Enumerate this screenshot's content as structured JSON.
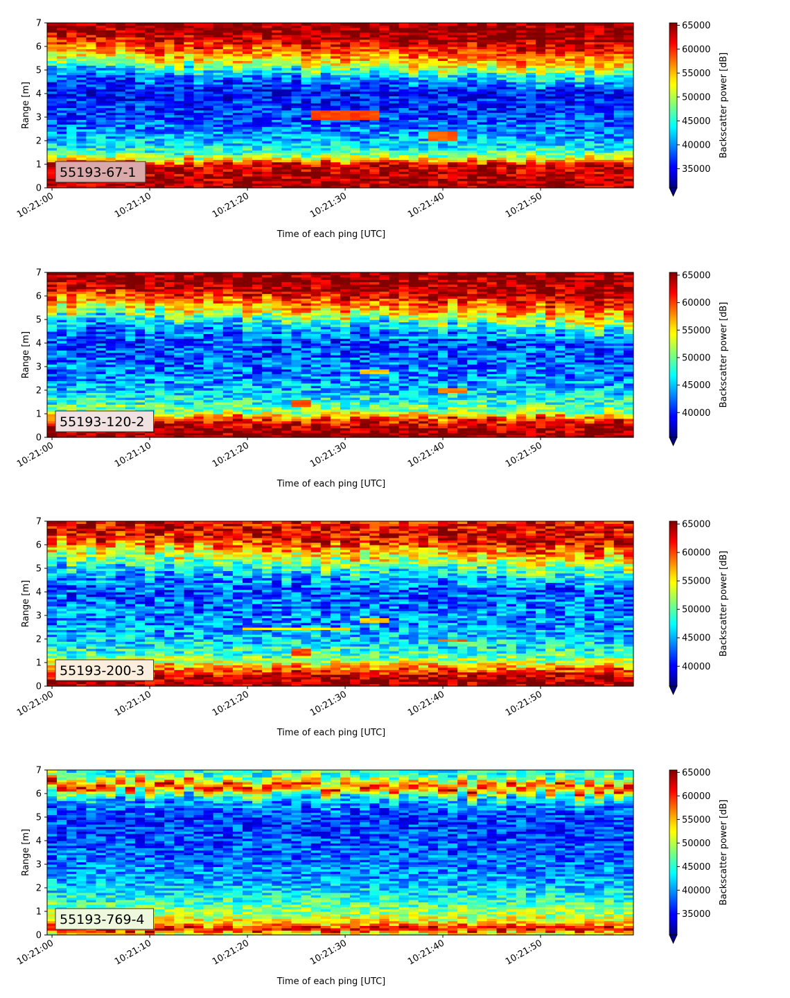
{
  "chart_data": [
    {
      "type": "heatmap",
      "label": "55193-67-1",
      "label_box_color": "#dca9ab",
      "xlabel": "Time of each ping [UTC]",
      "ylabel": "Range [m]",
      "xlim_seconds_after_10_21_00": [
        -0.5,
        59.5
      ],
      "ylim": [
        0,
        7
      ],
      "x_ticks": [
        "10:21:00",
        "10:21:10",
        "10:21:20",
        "10:21:30",
        "10:21:40",
        "10:21:50"
      ],
      "y_ticks": [
        "0",
        "1",
        "2",
        "3",
        "4",
        "5",
        "6",
        "7"
      ],
      "colorbar_label": "Backscatter power [dB]",
      "colorbar_ticks": [
        "35000",
        "40000",
        "45000",
        "50000",
        "55000",
        "60000",
        "65000"
      ],
      "colorbar_range": [
        31000,
        65500
      ],
      "colormap": "jet",
      "ping_count": 60,
      "range_bins": 70,
      "profile_range_m": [
        0.2,
        0.6,
        1.0,
        1.3,
        1.6,
        2.0,
        2.6,
        3.3,
        4.0,
        4.6,
        5.1,
        5.5,
        5.9,
        6.3,
        6.6,
        7.0
      ],
      "profile_value": [
        64000,
        63500,
        62500,
        50000,
        45000,
        42000,
        39000,
        37000,
        36000,
        37500,
        43000,
        52000,
        57000,
        61000,
        64000,
        65000
      ],
      "drift_upper_boundary_m": -0.5,
      "features": [
        {
          "x_from": 27,
          "x_to": 33,
          "y_from": 2.9,
          "y_to": 3.3,
          "value": 59000
        },
        {
          "x_from": 39,
          "x_to": 41,
          "y_from": 2.0,
          "y_to": 2.4,
          "value": 58000
        }
      ]
    },
    {
      "type": "heatmap",
      "label": "55193-120-2",
      "label_box_color": "#f0e2e0",
      "xlabel": "Time of each ping [UTC]",
      "ylabel": "Range [m]",
      "xlim_seconds_after_10_21_00": [
        -0.5,
        59.5
      ],
      "ylim": [
        0,
        7
      ],
      "x_ticks": [
        "10:21:00",
        "10:21:10",
        "10:21:20",
        "10:21:30",
        "10:21:40",
        "10:21:50"
      ],
      "y_ticks": [
        "0",
        "1",
        "2",
        "3",
        "4",
        "5",
        "6",
        "7"
      ],
      "colorbar_label": "Backscatter power [dB]",
      "colorbar_ticks": [
        "40000",
        "45000",
        "50000",
        "55000",
        "60000",
        "65000"
      ],
      "colorbar_range": [
        35500,
        65500
      ],
      "colormap": "jet",
      "ping_count": 60,
      "range_bins": 70,
      "profile_range_m": [
        0.2,
        0.5,
        0.8,
        1.1,
        1.5,
        2.0,
        2.6,
        3.3,
        4.0,
        4.6,
        5.1,
        5.5,
        5.9,
        6.3,
        6.6,
        7.0
      ],
      "profile_value": [
        65000,
        64000,
        60000,
        51000,
        48000,
        45000,
        43000,
        42000,
        41500,
        42500,
        46000,
        53000,
        58000,
        62000,
        64500,
        65000
      ],
      "drift_upper_boundary_m": -0.6,
      "features": [
        {
          "x_from": 25,
          "x_to": 26,
          "y_from": 1.3,
          "y_to": 1.6,
          "value": 60000
        },
        {
          "x_from": 32,
          "x_to": 34,
          "y_from": 2.7,
          "y_to": 2.9,
          "value": 56000
        },
        {
          "x_from": 40,
          "x_to": 42,
          "y_from": 1.9,
          "y_to": 2.1,
          "value": 58000
        }
      ]
    },
    {
      "type": "heatmap",
      "label": "55193-200-3",
      "label_box_color": "#fbeedc",
      "xlabel": "Time of each ping [UTC]",
      "ylabel": "Range [m]",
      "xlim_seconds_after_10_21_00": [
        -0.5,
        59.5
      ],
      "ylim": [
        0,
        7
      ],
      "x_ticks": [
        "10:21:00",
        "10:21:10",
        "10:21:20",
        "10:21:30",
        "10:21:40",
        "10:21:50"
      ],
      "y_ticks": [
        "0",
        "1",
        "2",
        "3",
        "4",
        "5",
        "6",
        "7"
      ],
      "colorbar_label": "Backscatter power [dB]",
      "colorbar_ticks": [
        "40000",
        "45000",
        "50000",
        "55000",
        "60000",
        "65000"
      ],
      "colorbar_range": [
        36500,
        65500
      ],
      "colormap": "jet",
      "ping_count": 60,
      "range_bins": 70,
      "profile_range_m": [
        0.15,
        0.4,
        0.7,
        1.0,
        1.4,
        2.0,
        2.6,
        3.3,
        4.0,
        4.6,
        5.1,
        5.5,
        5.9,
        6.3,
        6.6,
        7.0
      ],
      "profile_value": [
        65000,
        63500,
        60000,
        53000,
        49000,
        46000,
        44500,
        43500,
        42500,
        44000,
        47000,
        52000,
        56000,
        61000,
        63500,
        62000
      ],
      "drift_upper_boundary_m": -0.5,
      "features": [
        {
          "x_from": 20,
          "x_to": 30,
          "y_from": 2.4,
          "y_to": 2.55,
          "value": 55000
        },
        {
          "x_from": 25,
          "x_to": 26,
          "y_from": 1.3,
          "y_to": 1.55,
          "value": 60000
        },
        {
          "x_from": 32,
          "x_to": 34,
          "y_from": 2.75,
          "y_to": 2.9,
          "value": 56000
        },
        {
          "x_from": 40,
          "x_to": 42,
          "y_from": 1.9,
          "y_to": 2.05,
          "value": 59000
        }
      ]
    },
    {
      "type": "heatmap",
      "label": "55193-769-4",
      "label_box_color": "#eef8dc",
      "xlabel": "Time of each ping [UTC]",
      "ylabel": "Range [m]",
      "xlim_seconds_after_10_21_00": [
        -0.5,
        59.5
      ],
      "ylim": [
        0,
        7
      ],
      "x_ticks": [
        "10:21:00",
        "10:21:10",
        "10:21:20",
        "10:21:30",
        "10:21:40",
        "10:21:50"
      ],
      "y_ticks": [
        "0",
        "1",
        "2",
        "3",
        "4",
        "5",
        "6",
        "7"
      ],
      "colorbar_label": "Backscatter power [dB]",
      "colorbar_ticks": [
        "35000",
        "40000",
        "45000",
        "50000",
        "55000",
        "60000",
        "65000"
      ],
      "colorbar_range": [
        30500,
        65500
      ],
      "colormap": "jet",
      "ping_count": 60,
      "range_bins": 70,
      "profile_range_m": [
        0.1,
        0.25,
        0.45,
        0.8,
        1.2,
        1.8,
        2.5,
        3.3,
        4.0,
        4.8,
        5.4,
        5.9,
        6.2,
        6.4,
        6.7,
        7.0
      ],
      "profile_value": [
        52000,
        63000,
        55000,
        50000,
        47000,
        43000,
        40000,
        38500,
        37500,
        37000,
        38000,
        42000,
        52000,
        62000,
        50000,
        44000
      ],
      "drift_upper_boundary_m": -0.2,
      "features": []
    }
  ]
}
